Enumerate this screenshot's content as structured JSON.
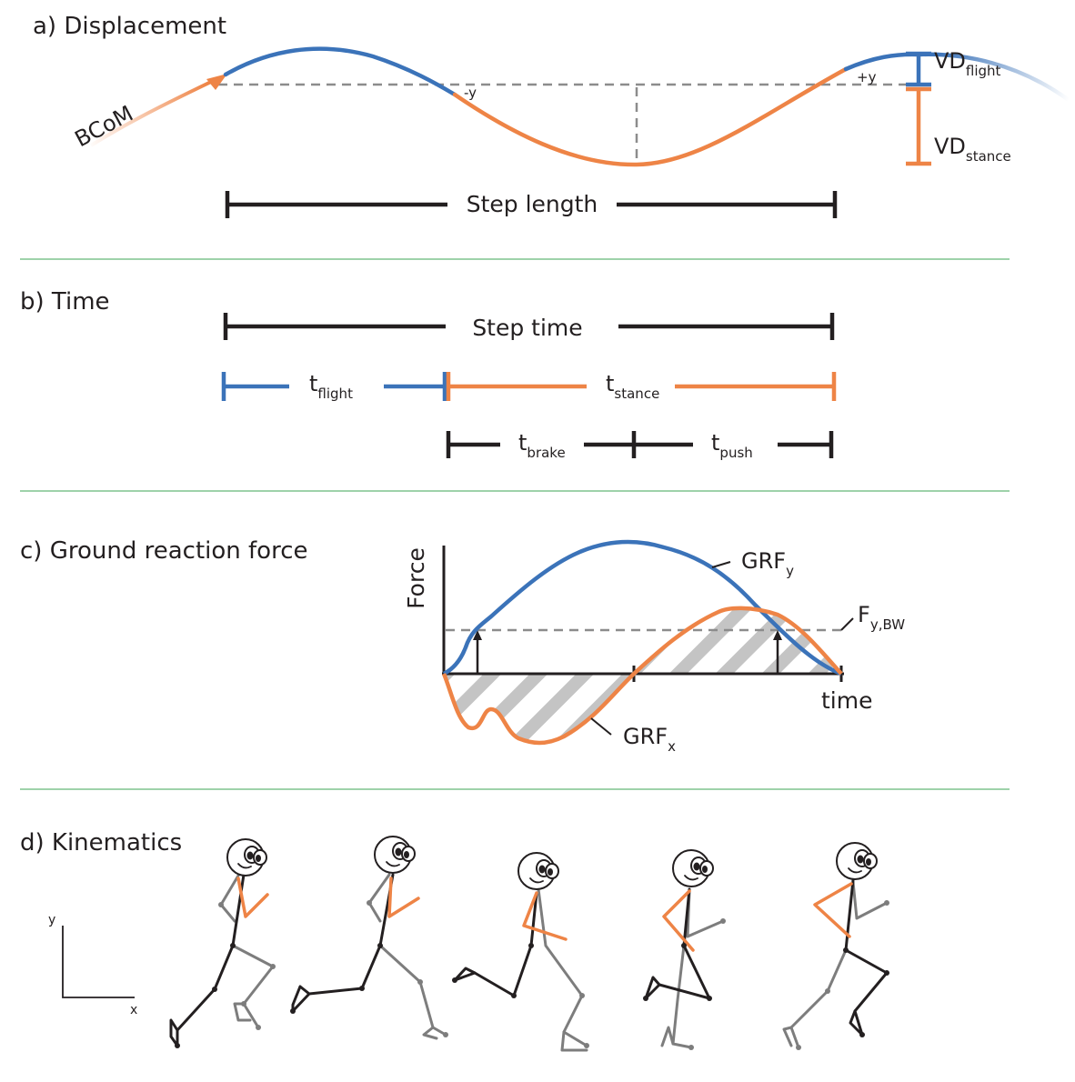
{
  "panels": {
    "displacement": {
      "title": "a) Displacement",
      "bcom": "BCoM",
      "minus_y": "-y",
      "plus_y": "+y",
      "vd_flight": {
        "main": "VD",
        "sub": "flight"
      },
      "vd_stance": {
        "main": "VD",
        "sub": "stance"
      },
      "step_length": "Step length"
    },
    "time": {
      "title": "b) Time",
      "step_time": "Step time",
      "t_flight": {
        "main": "t",
        "sub": "flight"
      },
      "t_stance": {
        "main": "t",
        "sub": "stance"
      },
      "t_brake": {
        "main": "t",
        "sub": "brake"
      },
      "t_push": {
        "main": "t",
        "sub": "push"
      }
    },
    "grf": {
      "title": "c) Ground reaction force",
      "ylabel": "Force",
      "xlabel": "time",
      "grf_y": {
        "main": "GRF",
        "sub": "y"
      },
      "grf_x": {
        "main": "GRF",
        "sub": "x"
      },
      "f_bw": {
        "main": "F",
        "sub": "y,BW"
      }
    },
    "kinematics": {
      "title": "d) Kinematics",
      "axis_y": "y",
      "axis_x": "x"
    }
  },
  "colors": {
    "flight": "#3b73b9",
    "stance": "#ee8446",
    "dark": "#231f20",
    "limb_gray": "#7d7d7d",
    "dashed": "#8c8c8c",
    "divider": "#7fc48d",
    "hatch": "#c4c4c4"
  }
}
